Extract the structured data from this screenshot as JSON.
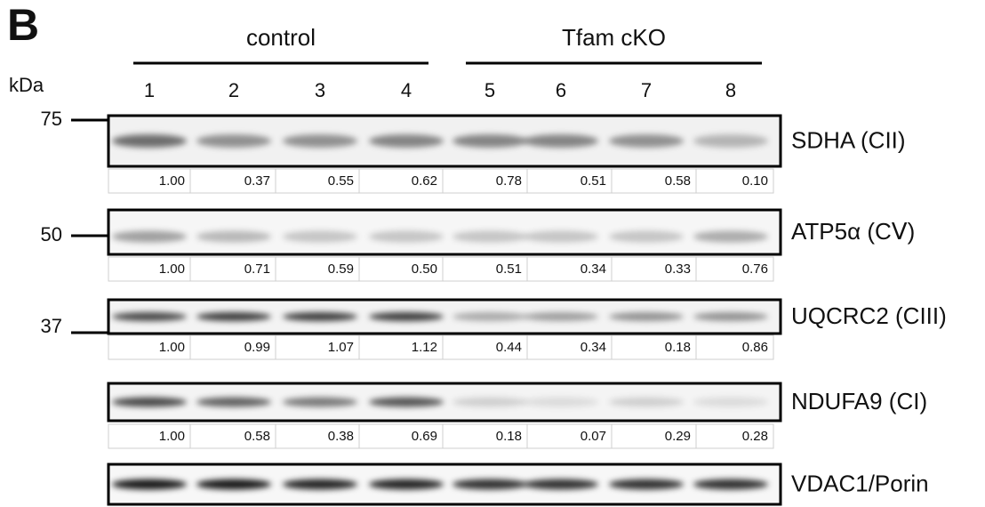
{
  "panel_label": "B",
  "groups": [
    {
      "label": "control"
    },
    {
      "label": "Tfam cKO"
    }
  ],
  "unit_label": "kDa",
  "lanes": [
    "1",
    "2",
    "3",
    "4",
    "5",
    "6",
    "7",
    "8"
  ],
  "markers": [
    {
      "label": "75"
    },
    {
      "label": "50"
    },
    {
      "label": "37"
    }
  ],
  "blots": [
    {
      "label": "SDHA (CII)",
      "values": [
        "1.00",
        "0.37",
        "0.55",
        "0.62",
        "0.78",
        "0.51",
        "0.58",
        "0.10"
      ]
    },
    {
      "label": "ATP5α (CⅤ)",
      "values": [
        "1.00",
        "0.71",
        "0.59",
        "0.50",
        "0.51",
        "0.34",
        "0.33",
        "0.76"
      ]
    },
    {
      "label": "UQCRC2 (CIII)",
      "values": [
        "1.00",
        "0.99",
        "1.07",
        "1.12",
        "0.44",
        "0.34",
        "0.18",
        "0.86"
      ]
    },
    {
      "label": "NDUFA9 (CI)",
      "values": [
        "1.00",
        "0.58",
        "0.38",
        "0.69",
        "0.18",
        "0.07",
        "0.29",
        "0.28"
      ]
    },
    {
      "label": "VDAC1/Porin"
    }
  ]
}
